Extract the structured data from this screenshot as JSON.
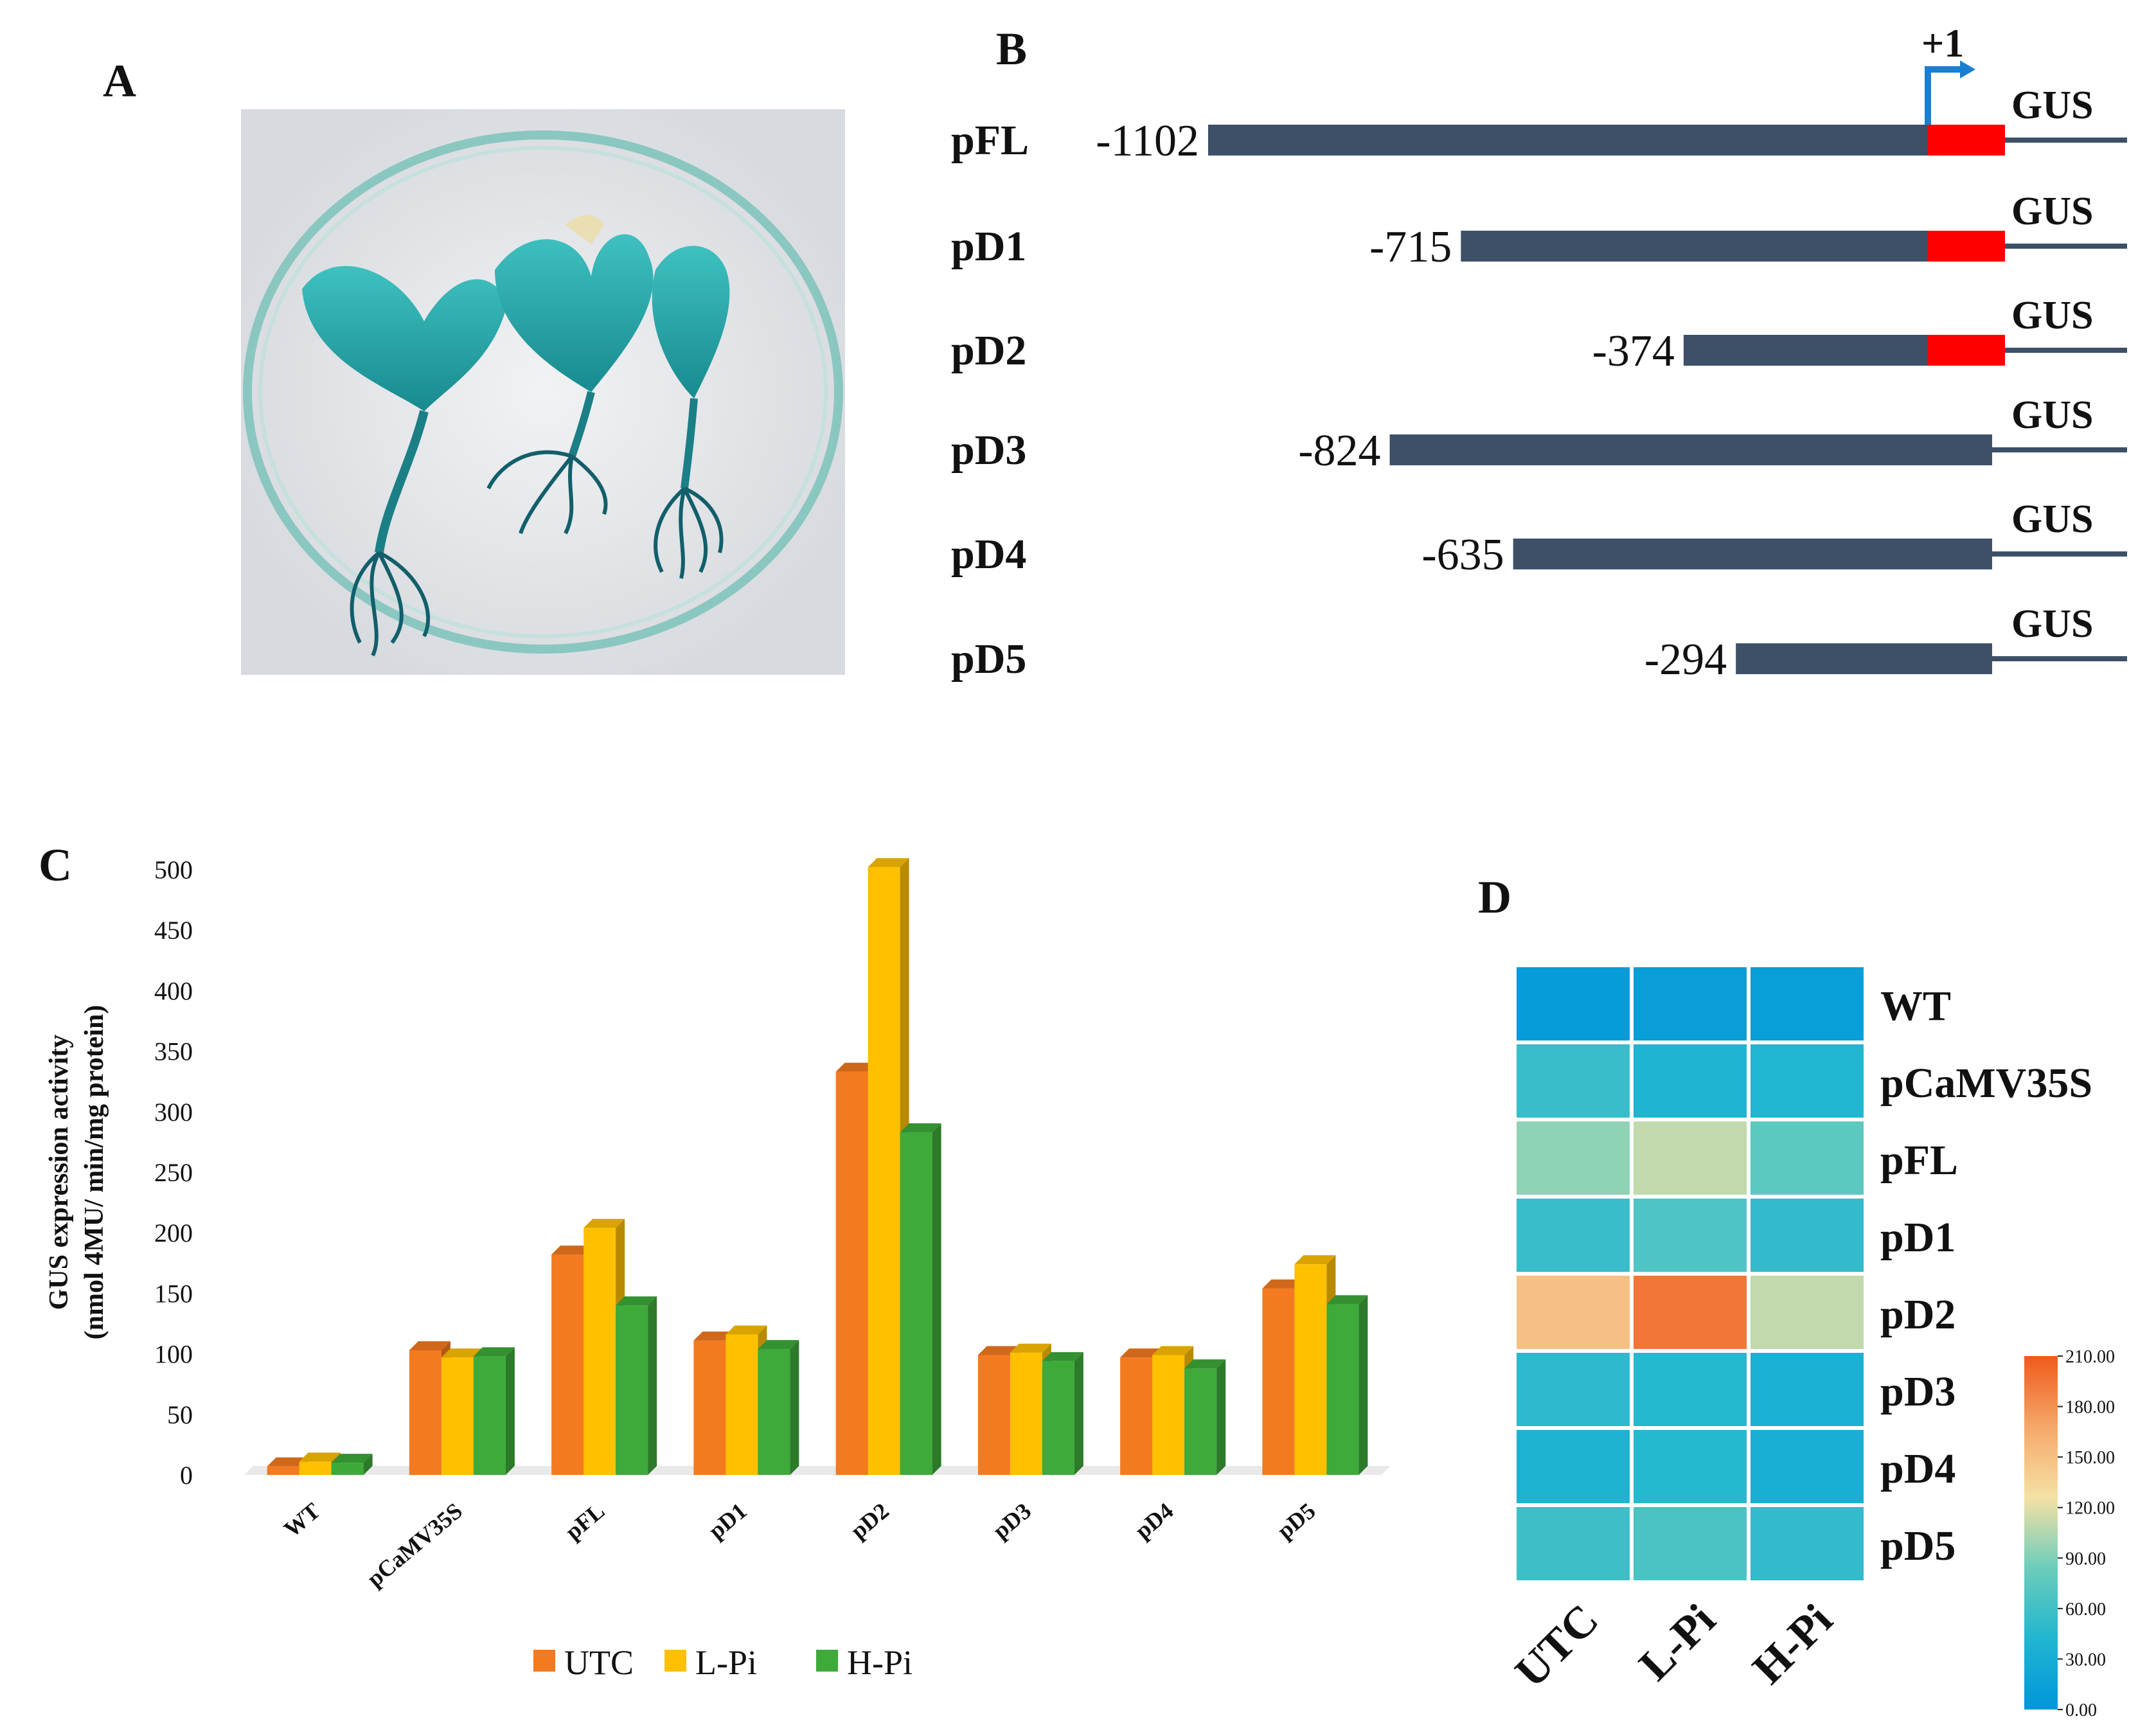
{
  "panels": {
    "a": "A",
    "b": "B",
    "c": "C",
    "d": "D"
  },
  "photo": {
    "plant_icon": "stained-seedling-icon",
    "dish_icon": "petri-dish-icon",
    "stain_color": "#2aa6a4"
  },
  "constructs": {
    "tss_label": "+1",
    "reporter_label": "GUS",
    "items": [
      {
        "name": "pFL",
        "start_label": "-1102",
        "start": -1102,
        "minimal_promoter": true
      },
      {
        "name": "pD1",
        "start_label": "-715",
        "start": -715,
        "minimal_promoter": true
      },
      {
        "name": "pD2",
        "start_label": "-374",
        "start": -374,
        "minimal_promoter": true
      },
      {
        "name": "pD3",
        "start_label": "-824",
        "start": -824,
        "minimal_promoter": false
      },
      {
        "name": "pD4",
        "start_label": "-635",
        "start": -635,
        "minimal_promoter": false
      },
      {
        "name": "pD5",
        "start_label": "-294",
        "start": -294,
        "minimal_promoter": false
      }
    ],
    "colors": {
      "promoter": "#3d5068",
      "minimal": "#ff0000",
      "tss_arrow": "#1a7fd1"
    }
  },
  "chart_data": [
    {
      "type": "bar",
      "ylabel": "GUS expression  activity",
      "ylabel2": "(nmol 4MU/ min/mg protein)",
      "ylim": [
        0,
        500
      ],
      "yticks": [
        0,
        50,
        100,
        150,
        200,
        250,
        300,
        350,
        400,
        450,
        500
      ],
      "categories": [
        "WT",
        "pCaMV35S",
        "pFL",
        "pD1",
        "pD2",
        "pD3",
        "pD4",
        "pD5"
      ],
      "series": [
        {
          "name": "UTC",
          "color": "#f47a20",
          "values": [
            7,
            103,
            182,
            111,
            333,
            99,
            97,
            154
          ]
        },
        {
          "name": "L-Pi",
          "color": "#ffc000",
          "values": [
            11,
            97,
            204,
            116,
            502,
            101,
            99,
            174
          ]
        },
        {
          "name": "H-Pi",
          "color": "#3daa3a",
          "values": [
            10,
            98,
            140,
            104,
            283,
            94,
            88,
            141
          ]
        }
      ],
      "legend": "bottom",
      "grid": false
    },
    {
      "type": "heatmap",
      "rows": [
        "WT",
        "pCaMV35S",
        "pFL",
        "pD1",
        "pD2",
        "pD3",
        "pD4",
        "pD5"
      ],
      "columns": [
        "UTC",
        "L-Pi",
        "H-Pi"
      ],
      "values": [
        [
          7,
          11,
          10
        ],
        [
          55,
          40,
          42
        ],
        [
          95,
          110,
          75
        ],
        [
          55,
          68,
          52
        ],
        [
          150,
          195,
          110
        ],
        [
          48,
          45,
          35
        ],
        [
          38,
          45,
          32
        ],
        [
          58,
          65,
          52
        ]
      ],
      "colorbar": {
        "min": 0,
        "max": 210,
        "ticks": [
          "0.00",
          "30.00",
          "60.00",
          "90.00",
          "120.00",
          "150.00",
          "180.00",
          "210.00"
        ],
        "stops": [
          "#0096db",
          "#21b6d0",
          "#6ccdbc",
          "#f5e1a4",
          "#f5a86a",
          "#f05a1a"
        ]
      }
    }
  ]
}
